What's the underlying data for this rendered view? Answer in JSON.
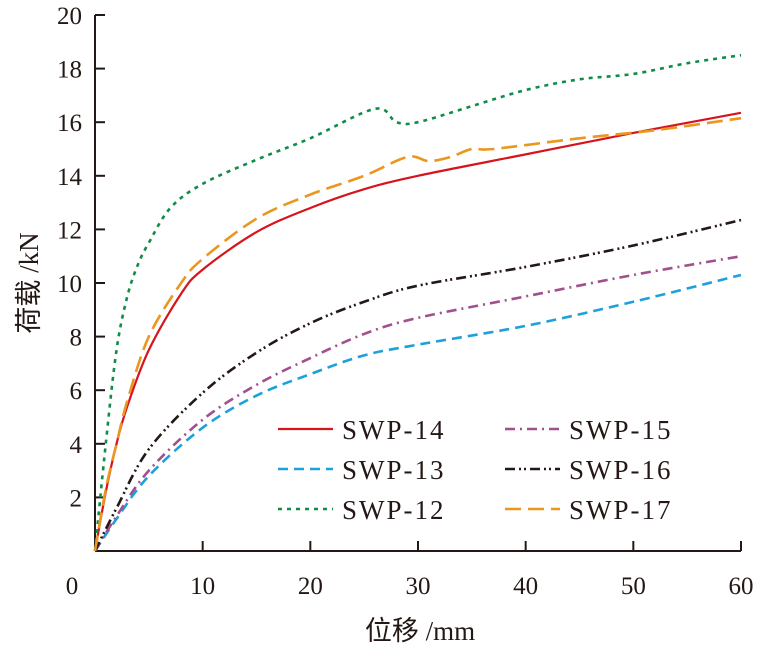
{
  "chart_data": {
    "type": "line",
    "title": "",
    "xlabel": "位移 /mm",
    "ylabel": "荷载 /kN",
    "xlim": [
      0,
      60
    ],
    "ylim": [
      0,
      20
    ],
    "xticks": [
      0,
      10,
      20,
      30,
      40,
      50,
      60
    ],
    "yticks": [
      2,
      4,
      6,
      8,
      10,
      12,
      14,
      16,
      18,
      20
    ],
    "xtick_labels": [
      "0",
      "10",
      "20",
      "30",
      "40",
      "50",
      "60"
    ],
    "ytick_labels": [
      "2",
      "4",
      "6",
      "8",
      "10",
      "12",
      "14",
      "16",
      "18",
      "20"
    ],
    "grid": false,
    "legend_position": "bottom-right",
    "series": [
      {
        "name": "SWP-14",
        "color": "#d7141e",
        "dash": "solid",
        "x": [
          0,
          1,
          2,
          3,
          5,
          8,
          10,
          15,
          20,
          25,
          30,
          40,
          50,
          60
        ],
        "y": [
          0,
          2.2,
          4.0,
          5.4,
          7.5,
          9.6,
          10.5,
          11.9,
          12.8,
          13.5,
          14.0,
          14.8,
          15.6,
          16.35
        ]
      },
      {
        "name": "SWP-13",
        "color": "#1ea0dc",
        "dash": "dashed",
        "x": [
          0,
          2,
          5,
          10,
          15,
          20,
          25,
          30,
          40,
          50,
          60
        ],
        "y": [
          0,
          1.2,
          2.8,
          4.6,
          5.8,
          6.6,
          7.3,
          7.7,
          8.4,
          9.3,
          10.3
        ]
      },
      {
        "name": "SWP-12",
        "color": "#0f8c46",
        "dash": "dotted",
        "x": [
          0,
          1,
          2,
          3,
          4,
          5,
          7,
          10,
          15,
          20,
          26,
          28,
          30,
          35,
          40,
          45,
          50,
          55,
          60
        ],
        "y": [
          0,
          4.0,
          7.5,
          9.5,
          10.7,
          11.5,
          12.8,
          13.7,
          14.6,
          15.4,
          16.5,
          16.0,
          16.0,
          16.6,
          17.2,
          17.6,
          17.8,
          18.2,
          18.5
        ]
      },
      {
        "name": "SWP-15",
        "color": "#a0508c",
        "dash": "dashdot",
        "x": [
          0,
          2,
          5,
          10,
          15,
          20,
          25,
          30,
          40,
          50,
          60
        ],
        "y": [
          0,
          1.3,
          3.0,
          4.9,
          6.2,
          7.2,
          8.1,
          8.7,
          9.5,
          10.3,
          11.0
        ]
      },
      {
        "name": "SWP-16",
        "color": "#231815",
        "dash": "dashdotdot",
        "x": [
          0,
          2,
          5,
          10,
          15,
          20,
          25,
          30,
          40,
          50,
          60
        ],
        "y": [
          0,
          1.6,
          3.8,
          5.9,
          7.4,
          8.5,
          9.3,
          9.9,
          10.6,
          11.4,
          12.35
        ]
      },
      {
        "name": "SWP-17",
        "color": "#eb961e",
        "dash": "longdash",
        "x": [
          0,
          1,
          2,
          3,
          5,
          8,
          10,
          15,
          20,
          25,
          29,
          31,
          33,
          35,
          37,
          45,
          52,
          60
        ],
        "y": [
          0,
          2.3,
          4.0,
          5.6,
          8.0,
          10.0,
          10.9,
          12.4,
          13.3,
          14.0,
          14.7,
          14.55,
          14.7,
          15.0,
          15.0,
          15.4,
          15.7,
          16.15
        ]
      }
    ]
  }
}
